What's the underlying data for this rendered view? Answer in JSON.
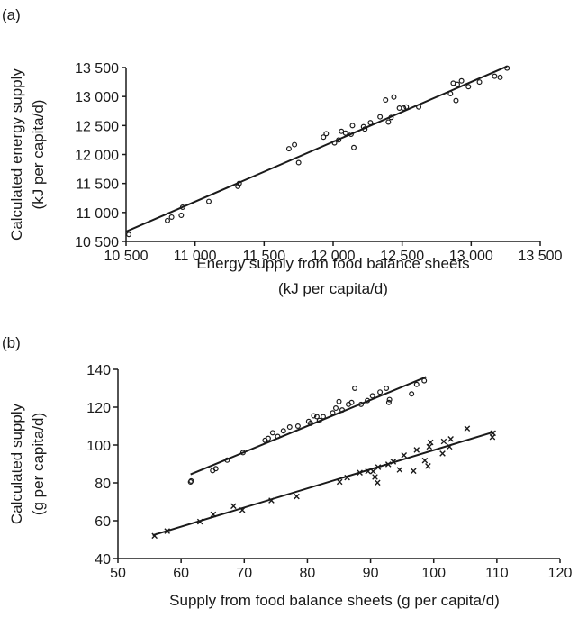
{
  "chart_data": [
    {
      "panel": "(a)",
      "type": "scatter",
      "xlabel": "Energy supply from food balance sheets",
      "xlabel_line2": "(kJ per capita/d)",
      "ylabel": "Calculated energy supply",
      "ylabel_line2": "(kJ per capita/d)",
      "xlim": [
        10500,
        13500
      ],
      "ylim": [
        10500,
        13500
      ],
      "xticks": [
        10500,
        11000,
        11500,
        12000,
        12500,
        13000,
        13500
      ],
      "xtick_labels": [
        "10 500",
        "11 000",
        "11 500",
        "12 000",
        "12 500",
        "13 000",
        "13 500"
      ],
      "yticks": [
        10500,
        11000,
        11500,
        12000,
        12500,
        13000,
        13500
      ],
      "ytick_labels": [
        "10 500",
        "11 000",
        "11 500",
        "12 000",
        "12 500",
        "13 000",
        "13 500"
      ],
      "series": [
        {
          "marker": "o",
          "points": [
            [
              10520,
              10620
            ],
            [
              10800,
              10860
            ],
            [
              10830,
              10920
            ],
            [
              10900,
              10950
            ],
            [
              10910,
              11090
            ],
            [
              11100,
              11190
            ],
            [
              11310,
              11450
            ],
            [
              11320,
              11500
            ],
            [
              11680,
              12100
            ],
            [
              11720,
              12170
            ],
            [
              11750,
              11860
            ],
            [
              11930,
              12300
            ],
            [
              11950,
              12360
            ],
            [
              12010,
              12200
            ],
            [
              12040,
              12250
            ],
            [
              12060,
              12400
            ],
            [
              12090,
              12370
            ],
            [
              12130,
              12350
            ],
            [
              12140,
              12500
            ],
            [
              12150,
              12120
            ],
            [
              12220,
              12480
            ],
            [
              12230,
              12440
            ],
            [
              12270,
              12550
            ],
            [
              12340,
              12650
            ],
            [
              12380,
              12940
            ],
            [
              12400,
              12560
            ],
            [
              12420,
              12640
            ],
            [
              12440,
              12990
            ],
            [
              12480,
              12800
            ],
            [
              12510,
              12800
            ],
            [
              12530,
              12820
            ],
            [
              12620,
              12820
            ],
            [
              12850,
              13050
            ],
            [
              12870,
              13230
            ],
            [
              12890,
              12930
            ],
            [
              12900,
              13210
            ],
            [
              12930,
              13270
            ],
            [
              12980,
              13170
            ],
            [
              13060,
              13250
            ],
            [
              13170,
              13350
            ],
            [
              13210,
              13330
            ],
            [
              13260,
              13490
            ]
          ]
        }
      ],
      "fit_lines": [
        {
          "from": [
            10500,
            10670
          ],
          "to": [
            13260,
            13520
          ]
        }
      ]
    },
    {
      "panel": "(b)",
      "type": "scatter",
      "xlabel": "Supply from food balance sheets (g per capita/d)",
      "ylabel": "Calculated supply",
      "ylabel_line2": "(g per capita/d)",
      "xlim": [
        50,
        120
      ],
      "ylim": [
        40,
        140
      ],
      "xticks": [
        50,
        60,
        70,
        80,
        90,
        100,
        110,
        120
      ],
      "yticks": [
        40,
        60,
        80,
        100,
        120,
        140
      ],
      "series": [
        {
          "marker": "o",
          "points": [
            [
              61.5,
              80.5
            ],
            [
              61.6,
              81
            ],
            [
              65,
              86.5
            ],
            [
              65.5,
              87.5
            ],
            [
              67.3,
              92
            ],
            [
              69.8,
              96
            ],
            [
              73.3,
              102.5
            ],
            [
              73.8,
              103.5
            ],
            [
              74.5,
              106.5
            ],
            [
              75.3,
              104.5
            ],
            [
              76.2,
              107.5
            ],
            [
              77.2,
              109.5
            ],
            [
              78.5,
              110
            ],
            [
              80.2,
              112.5
            ],
            [
              80.5,
              111.5
            ],
            [
              81,
              115.5
            ],
            [
              81.5,
              115
            ],
            [
              81.9,
              113
            ],
            [
              82.5,
              115
            ],
            [
              84,
              117
            ],
            [
              84.5,
              119.5
            ],
            [
              85,
              123
            ],
            [
              85.5,
              118.5
            ],
            [
              86.5,
              121.5
            ],
            [
              87,
              122.5
            ],
            [
              87.5,
              130
            ],
            [
              88.5,
              121.5
            ],
            [
              89.5,
              123.5
            ],
            [
              90.3,
              126
            ],
            [
              91.5,
              128
            ],
            [
              92.5,
              130
            ],
            [
              92.9,
              122.5
            ],
            [
              93,
              124
            ],
            [
              96.5,
              127
            ],
            [
              97.3,
              132
            ],
            [
              98.5,
              134
            ]
          ]
        },
        {
          "marker": "x",
          "points": [
            [
              55.8,
              52
            ],
            [
              57.8,
              54.5
            ],
            [
              63,
              59.5
            ],
            [
              65.1,
              63.3
            ],
            [
              68.3,
              67.7
            ],
            [
              69.7,
              65.6
            ],
            [
              74.3,
              70.7
            ],
            [
              78.3,
              72.8
            ],
            [
              85.1,
              80.5
            ],
            [
              86.3,
              82.8
            ],
            [
              88.3,
              85.4
            ],
            [
              89.6,
              86.1
            ],
            [
              90.7,
              83.1
            ],
            [
              91.1,
              80.1
            ],
            [
              90.4,
              86.1
            ],
            [
              91.2,
              88.3
            ],
            [
              92.8,
              89.8
            ],
            [
              93.6,
              91.2
            ],
            [
              94.6,
              86.9
            ],
            [
              95.3,
              94.6
            ],
            [
              96.8,
              86.3
            ],
            [
              97.3,
              97.4
            ],
            [
              98.6,
              91.8
            ],
            [
              99.1,
              88.9
            ],
            [
              99.3,
              99.1
            ],
            [
              99.5,
              101.4
            ],
            [
              101.4,
              95.5
            ],
            [
              101.6,
              101.9
            ],
            [
              102.5,
              99.1
            ],
            [
              102.7,
              103.2
            ],
            [
              105.3,
              108.7
            ],
            [
              109.3,
              104.2
            ],
            [
              109.4,
              106.3
            ]
          ]
        }
      ],
      "fit_lines": [
        {
          "from": [
            61.5,
            84.5
          ],
          "to": [
            98.8,
            136
          ]
        },
        {
          "from": [
            55.5,
            52.3
          ],
          "to": [
            109.6,
            107
          ]
        }
      ]
    }
  ]
}
